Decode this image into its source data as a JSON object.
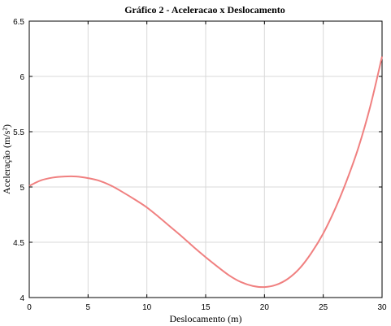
{
  "chart_data": {
    "type": "line",
    "title": "Gráfico 2 - Aceleracao x Deslocamento",
    "xlabel": "Deslocamento (m)",
    "ylabel": "Aceleração (m/s²)",
    "xlim": [
      0,
      30
    ],
    "ylim": [
      4,
      6.5
    ],
    "xticks": [
      0,
      5,
      10,
      15,
      20,
      25,
      30
    ],
    "yticks": [
      4,
      4.5,
      5,
      5.5,
      6,
      6.5
    ],
    "grid": true,
    "series": [
      {
        "color": "#f08080",
        "x": [
          0,
          1,
          2,
          3,
          4,
          5,
          6,
          7,
          8,
          9,
          10,
          11,
          12,
          13,
          14,
          15,
          16,
          17,
          18,
          19,
          20,
          21,
          22,
          23,
          24,
          25,
          26,
          27,
          28,
          29,
          30
        ],
        "y": [
          5.01,
          5.06,
          5.085,
          5.095,
          5.095,
          5.08,
          5.055,
          5.01,
          4.95,
          4.885,
          4.815,
          4.73,
          4.64,
          4.55,
          4.455,
          4.365,
          4.28,
          4.2,
          4.14,
          4.105,
          4.095,
          4.115,
          4.17,
          4.265,
          4.405,
          4.58,
          4.8,
          5.06,
          5.36,
          5.73,
          6.18
        ]
      }
    ]
  }
}
